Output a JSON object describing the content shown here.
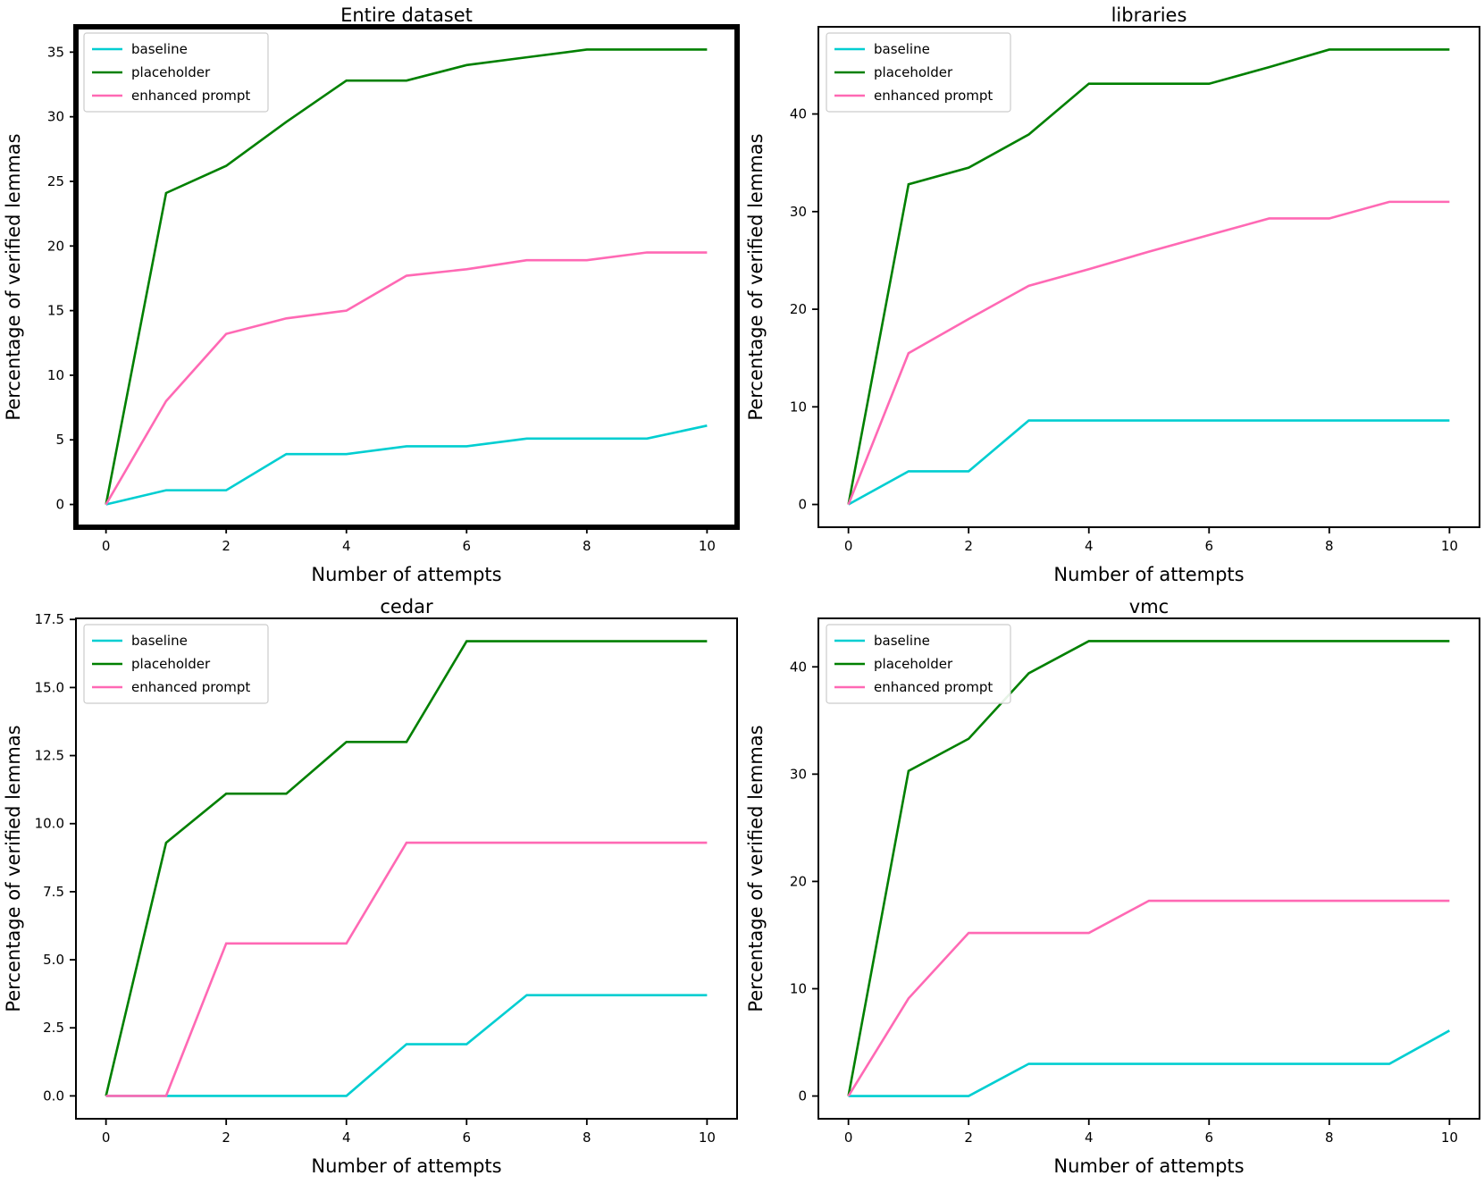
{
  "figure": {
    "background": "#ffffff"
  },
  "colors": {
    "baseline": "#00CED1",
    "placeholder": "#008000",
    "enhanced_prompt": "#FF69B4",
    "axis": "#000000",
    "legend_border": "#cccccc"
  },
  "chart_data": [
    {
      "type": "line",
      "title": "Entire dataset",
      "xlabel": "Number of attempts",
      "ylabel": "Percentage of verified lemmas",
      "highlighted_border": true,
      "grid": false,
      "legend_position": "upper left",
      "x": [
        0,
        1,
        2,
        3,
        4,
        5,
        6,
        7,
        8,
        9,
        10
      ],
      "xlim": [
        -0.5,
        10.5
      ],
      "ylim": [
        -1.76,
        36.96
      ],
      "xticks": [
        "0",
        "2",
        "4",
        "6",
        "8",
        "10"
      ],
      "yticks": [
        "0",
        "5",
        "10",
        "15",
        "20",
        "25",
        "30",
        "35"
      ],
      "series": [
        {
          "name": "baseline",
          "color": "#00CED1",
          "values": [
            0,
            1.1,
            1.1,
            3.9,
            3.9,
            4.5,
            4.5,
            5.1,
            5.1,
            5.1,
            6.1
          ]
        },
        {
          "name": "placeholder",
          "color": "#008000",
          "values": [
            0,
            24.1,
            26.2,
            29.6,
            32.8,
            32.8,
            34.0,
            34.6,
            35.2,
            35.2,
            35.2
          ]
        },
        {
          "name": "enhanced prompt",
          "color": "#FF69B4",
          "values": [
            0,
            8.0,
            13.2,
            14.4,
            15.0,
            17.7,
            18.2,
            18.9,
            18.9,
            19.5,
            19.5
          ]
        }
      ]
    },
    {
      "type": "line",
      "title": "libraries",
      "xlabel": "Number of attempts",
      "ylabel": "Percentage of verified lemmas",
      "highlighted_border": false,
      "grid": false,
      "legend_position": "upper left",
      "x": [
        0,
        1,
        2,
        3,
        4,
        5,
        6,
        7,
        8,
        9,
        10
      ],
      "xlim": [
        -0.5,
        10.5
      ],
      "ylim": [
        -2.33,
        48.93
      ],
      "xticks": [
        "0",
        "2",
        "4",
        "6",
        "8",
        "10"
      ],
      "yticks": [
        "0",
        "10",
        "20",
        "30",
        "40"
      ],
      "series": [
        {
          "name": "baseline",
          "color": "#00CED1",
          "values": [
            0,
            3.4,
            3.4,
            8.6,
            8.6,
            8.6,
            8.6,
            8.6,
            8.6,
            8.6,
            8.6
          ]
        },
        {
          "name": "placeholder",
          "color": "#008000",
          "values": [
            0,
            32.8,
            34.5,
            37.9,
            43.1,
            43.1,
            43.1,
            44.8,
            46.6,
            46.6,
            46.6
          ]
        },
        {
          "name": "enhanced prompt",
          "color": "#FF69B4",
          "values": [
            0,
            15.5,
            19.0,
            22.4,
            24.1,
            25.9,
            27.6,
            29.3,
            29.3,
            31.0,
            31.0
          ]
        }
      ]
    },
    {
      "type": "line",
      "title": "cedar",
      "xlabel": "Number of attempts",
      "ylabel": "Percentage of verified lemmas",
      "highlighted_border": false,
      "grid": false,
      "legend_position": "upper left",
      "x": [
        0,
        1,
        2,
        3,
        4,
        5,
        6,
        7,
        8,
        9,
        10
      ],
      "xlim": [
        -0.5,
        10.5
      ],
      "ylim": [
        -0.84,
        17.54
      ],
      "xticks": [
        "0",
        "2",
        "4",
        "6",
        "8",
        "10"
      ],
      "yticks": [
        "0.0",
        "2.5",
        "5.0",
        "7.5",
        "10.0",
        "12.5",
        "15.0",
        "17.5"
      ],
      "series": [
        {
          "name": "baseline",
          "color": "#00CED1",
          "values": [
            0,
            0,
            0,
            0,
            0,
            1.9,
            1.9,
            3.7,
            3.7,
            3.7,
            3.7
          ]
        },
        {
          "name": "placeholder",
          "color": "#008000",
          "values": [
            0,
            9.3,
            11.1,
            11.1,
            13.0,
            13.0,
            16.7,
            16.7,
            16.7,
            16.7,
            16.7
          ]
        },
        {
          "name": "enhanced prompt",
          "color": "#FF69B4",
          "values": [
            0,
            0,
            5.6,
            5.6,
            5.6,
            9.3,
            9.3,
            9.3,
            9.3,
            9.3,
            9.3
          ]
        }
      ]
    },
    {
      "type": "line",
      "title": "vmc",
      "xlabel": "Number of attempts",
      "ylabel": "Percentage of verified lemmas",
      "highlighted_border": false,
      "grid": false,
      "legend_position": "upper left",
      "x": [
        0,
        1,
        2,
        3,
        4,
        5,
        6,
        7,
        8,
        9,
        10
      ],
      "xlim": [
        -0.5,
        10.5
      ],
      "ylim": [
        -2.12,
        44.52
      ],
      "xticks": [
        "0",
        "2",
        "4",
        "6",
        "8",
        "10"
      ],
      "yticks": [
        "0",
        "10",
        "20",
        "30",
        "40"
      ],
      "series": [
        {
          "name": "baseline",
          "color": "#00CED1",
          "values": [
            0,
            0,
            0,
            3.0,
            3.0,
            3.0,
            3.0,
            3.0,
            3.0,
            3.0,
            6.1
          ]
        },
        {
          "name": "placeholder",
          "color": "#008000",
          "values": [
            0,
            30.3,
            33.3,
            39.4,
            42.4,
            42.4,
            42.4,
            42.4,
            42.4,
            42.4,
            42.4
          ]
        },
        {
          "name": "enhanced prompt",
          "color": "#FF69B4",
          "values": [
            0,
            9.1,
            15.2,
            15.2,
            15.2,
            18.2,
            18.2,
            18.2,
            18.2,
            18.2,
            18.2
          ]
        }
      ]
    }
  ]
}
